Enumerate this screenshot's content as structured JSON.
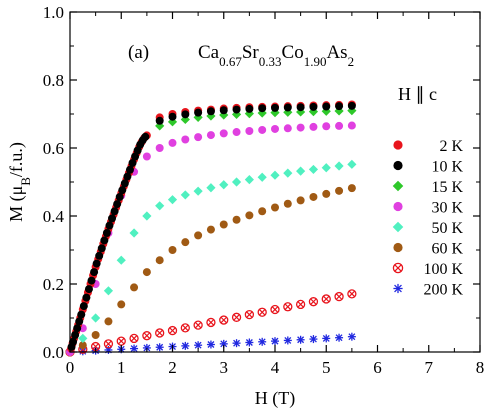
{
  "chart_data": {
    "type": "scatter",
    "panel_label": "(a)",
    "compound": {
      "parts": [
        {
          "t": "Ca",
          "s": "0.67"
        },
        {
          "t": "Sr",
          "s": "0.33"
        },
        {
          "t": "Co",
          "s": "1.90"
        },
        {
          "t": "As",
          "s": "2"
        }
      ]
    },
    "field_direction": "H ∥ c",
    "xlabel": "H (T)",
    "ylabel": {
      "pre": "M (μ",
      "sub": "B",
      "post": "/f.u.)"
    },
    "xlim": [
      0,
      8
    ],
    "ylim": [
      0,
      1.0
    ],
    "xticks": [
      0,
      1,
      2,
      3,
      4,
      5,
      6,
      7,
      8
    ],
    "yticks": [
      0.0,
      0.2,
      0.4,
      0.6,
      0.8,
      1.0
    ],
    "ytick_labels": [
      "0.0",
      "0.2",
      "0.4",
      "0.6",
      "0.8",
      "1.0"
    ],
    "legend_position": "right",
    "series": [
      {
        "name": "2 K",
        "color": "#e8141c",
        "marker": "circle",
        "x": [
          0.02,
          0.05,
          0.08,
          0.12,
          0.16,
          0.2,
          0.25,
          0.3,
          0.35,
          0.4,
          0.45,
          0.5,
          0.55,
          0.6,
          0.65,
          0.7,
          0.75,
          0.8,
          0.85,
          0.9,
          0.95,
          1.0,
          1.05,
          1.1,
          1.15,
          1.2,
          1.25,
          1.3,
          1.35,
          1.4,
          1.45,
          1.5,
          1.75,
          2.0,
          2.25,
          2.5,
          2.75,
          3.0,
          3.25,
          3.5,
          3.75,
          4.0,
          4.25,
          4.5,
          4.75,
          5.0,
          5.25,
          5.5
        ],
        "y": [
          0.01,
          0.025,
          0.04,
          0.06,
          0.08,
          0.1,
          0.125,
          0.15,
          0.175,
          0.2,
          0.225,
          0.25,
          0.273,
          0.295,
          0.318,
          0.34,
          0.362,
          0.383,
          0.404,
          0.425,
          0.446,
          0.467,
          0.487,
          0.507,
          0.527,
          0.547,
          0.566,
          0.585,
          0.603,
          0.618,
          0.63,
          0.637,
          0.69,
          0.7,
          0.706,
          0.71,
          0.713,
          0.716,
          0.718,
          0.72,
          0.721,
          0.722,
          0.723,
          0.724,
          0.725,
          0.726,
          0.727,
          0.728
        ]
      },
      {
        "name": "10 K",
        "color": "#000000",
        "marker": "circle",
        "x": [
          0.03,
          0.06,
          0.1,
          0.14,
          0.18,
          0.22,
          0.27,
          0.32,
          0.37,
          0.42,
          0.47,
          0.52,
          0.57,
          0.62,
          0.67,
          0.72,
          0.77,
          0.82,
          0.87,
          0.92,
          0.97,
          1.02,
          1.07,
          1.12,
          1.17,
          1.22,
          1.27,
          1.32,
          1.37,
          1.42,
          1.47,
          1.75,
          2.0,
          2.25,
          2.5,
          2.75,
          3.0,
          3.25,
          3.5,
          3.75,
          4.0,
          4.25,
          4.5,
          4.75,
          5.0,
          5.25,
          5.5
        ],
        "y": [
          0.015,
          0.03,
          0.05,
          0.07,
          0.09,
          0.11,
          0.135,
          0.16,
          0.185,
          0.21,
          0.235,
          0.26,
          0.283,
          0.305,
          0.328,
          0.35,
          0.372,
          0.393,
          0.414,
          0.435,
          0.456,
          0.476,
          0.496,
          0.516,
          0.536,
          0.556,
          0.575,
          0.593,
          0.61,
          0.623,
          0.633,
          0.68,
          0.692,
          0.699,
          0.704,
          0.708,
          0.711,
          0.713,
          0.715,
          0.717,
          0.718,
          0.719,
          0.72,
          0.721,
          0.722,
          0.723,
          0.724
        ]
      },
      {
        "name": "15 K",
        "color": "#2ec82a",
        "marker": "diamond",
        "x": [
          1.75,
          2.0,
          2.25,
          2.5,
          2.75,
          3.0,
          3.25,
          3.5,
          3.75,
          4.0,
          4.25,
          4.5,
          4.75,
          5.0,
          5.25,
          5.5
        ],
        "y": [
          0.665,
          0.677,
          0.684,
          0.69,
          0.694,
          0.697,
          0.699,
          0.701,
          0.703,
          0.704,
          0.705,
          0.706,
          0.707,
          0.708,
          0.709,
          0.71
        ]
      },
      {
        "name": "30 K",
        "color": "#e040e0",
        "marker": "circle",
        "x": [
          0.0,
          0.25,
          0.5,
          0.75,
          1.0,
          1.25,
          1.5,
          1.75,
          2.0,
          2.25,
          2.5,
          2.75,
          3.0,
          3.25,
          3.5,
          3.75,
          4.0,
          4.25,
          4.5,
          4.75,
          5.0,
          5.25,
          5.5
        ],
        "y": [
          0.0,
          0.07,
          0.2,
          0.35,
          0.46,
          0.53,
          0.575,
          0.6,
          0.615,
          0.625,
          0.632,
          0.638,
          0.643,
          0.647,
          0.65,
          0.653,
          0.656,
          0.658,
          0.66,
          0.662,
          0.664,
          0.665,
          0.666
        ]
      },
      {
        "name": "50 K",
        "color": "#50f0c0",
        "marker": "diamond",
        "x": [
          0.0,
          0.25,
          0.5,
          0.75,
          1.0,
          1.25,
          1.5,
          1.75,
          2.0,
          2.25,
          2.5,
          2.75,
          3.0,
          3.25,
          3.5,
          3.75,
          4.0,
          4.25,
          4.5,
          4.75,
          5.0,
          5.25,
          5.5
        ],
        "y": [
          0.0,
          0.04,
          0.1,
          0.18,
          0.27,
          0.35,
          0.4,
          0.43,
          0.448,
          0.462,
          0.473,
          0.483,
          0.492,
          0.5,
          0.507,
          0.514,
          0.52,
          0.526,
          0.532,
          0.537,
          0.542,
          0.547,
          0.552
        ]
      },
      {
        "name": "60 K",
        "color": "#a05a14",
        "marker": "circle",
        "x": [
          0.0,
          0.25,
          0.5,
          0.75,
          1.0,
          1.25,
          1.5,
          1.75,
          2.0,
          2.25,
          2.5,
          2.75,
          3.0,
          3.25,
          3.5,
          3.75,
          4.0,
          4.25,
          4.5,
          4.75,
          5.0,
          5.25,
          5.5
        ],
        "y": [
          0.0,
          0.02,
          0.05,
          0.09,
          0.14,
          0.19,
          0.235,
          0.27,
          0.3,
          0.323,
          0.343,
          0.36,
          0.375,
          0.389,
          0.402,
          0.414,
          0.425,
          0.436,
          0.446,
          0.456,
          0.465,
          0.474,
          0.482
        ]
      },
      {
        "name": "100 K",
        "color": "#e8141c",
        "marker": "circle-x",
        "x": [
          0.0,
          0.25,
          0.5,
          0.75,
          1.0,
          1.25,
          1.5,
          1.75,
          2.0,
          2.25,
          2.5,
          2.75,
          3.0,
          3.25,
          3.5,
          3.75,
          4.0,
          4.25,
          4.5,
          4.75,
          5.0,
          5.25,
          5.5
        ],
        "y": [
          0.0,
          0.008,
          0.016,
          0.024,
          0.032,
          0.04,
          0.048,
          0.056,
          0.063,
          0.071,
          0.079,
          0.087,
          0.094,
          0.102,
          0.11,
          0.117,
          0.125,
          0.133,
          0.14,
          0.148,
          0.156,
          0.163,
          0.171
        ]
      },
      {
        "name": "200 K",
        "color": "#2028e0",
        "marker": "asterisk",
        "x": [
          0.0,
          0.25,
          0.5,
          0.75,
          1.0,
          1.25,
          1.5,
          1.75,
          2.0,
          2.25,
          2.5,
          2.75,
          3.0,
          3.25,
          3.5,
          3.75,
          4.0,
          4.25,
          4.5,
          4.75,
          5.0,
          5.25,
          5.5
        ],
        "y": [
          0.0,
          0.002,
          0.004,
          0.006,
          0.008,
          0.01,
          0.012,
          0.014,
          0.016,
          0.018,
          0.02,
          0.022,
          0.024,
          0.026,
          0.028,
          0.03,
          0.032,
          0.034,
          0.036,
          0.038,
          0.04,
          0.042,
          0.045
        ]
      }
    ]
  }
}
